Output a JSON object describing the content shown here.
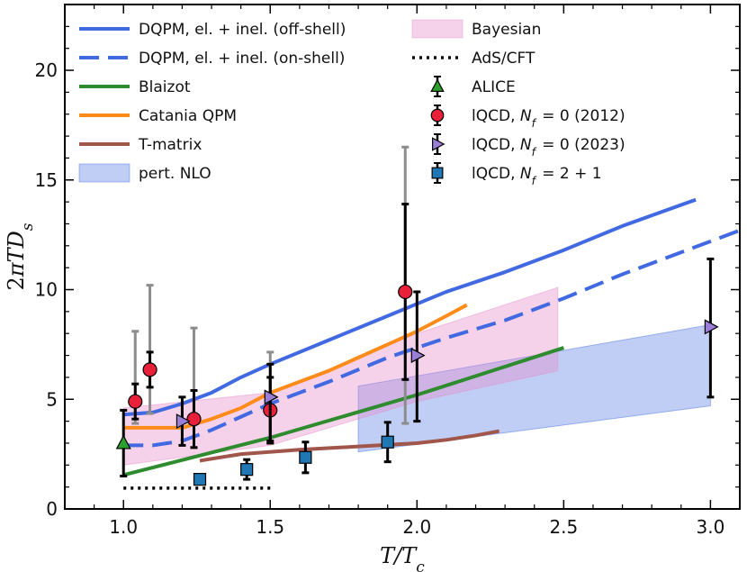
{
  "chart_data": {
    "type": "line",
    "xlabel": "T/T_c",
    "ylabel": "2πTD_s",
    "xlim": [
      0.8,
      3.1
    ],
    "ylim": [
      0,
      23
    ],
    "xticks": [
      "1.0",
      "1.5",
      "2.0",
      "2.5",
      "3.0"
    ],
    "yticks": [
      "0",
      "5",
      "10",
      "15",
      "20"
    ],
    "grid": false,
    "legend_position": "top",
    "lines": [
      {
        "name": "DQPM, el. + inel. (off-shell)",
        "color": "#4169e1",
        "dash": "solid",
        "x": [
          1.0,
          1.1,
          1.2,
          1.3,
          1.4,
          1.5,
          1.7,
          1.9,
          2.1,
          2.3,
          2.5,
          2.7,
          2.95
        ],
        "y": [
          4.3,
          4.4,
          4.8,
          5.3,
          6.0,
          6.6,
          7.7,
          8.8,
          9.9,
          10.8,
          11.8,
          12.9,
          14.1
        ]
      },
      {
        "name": "DQPM, el. + inel. (on-shell)",
        "color": "#4169e1",
        "dash": "dashed",
        "x": [
          1.0,
          1.1,
          1.2,
          1.3,
          1.4,
          1.5,
          1.7,
          1.9,
          2.1,
          2.3,
          2.5,
          2.7,
          2.9,
          3.1
        ],
        "y": [
          2.9,
          2.9,
          3.1,
          3.6,
          4.2,
          4.8,
          5.8,
          6.9,
          7.8,
          8.6,
          9.6,
          10.7,
          11.7,
          12.7
        ]
      },
      {
        "name": "Blaizot",
        "color": "#2e8b2e",
        "dash": "solid",
        "x": [
          1.0,
          1.5,
          2.0,
          2.5
        ],
        "y": [
          1.55,
          3.25,
          5.2,
          7.35
        ]
      },
      {
        "name": "Catania QPM",
        "color": "#ff8c1a",
        "dash": "solid",
        "x": [
          1.0,
          1.1,
          1.2,
          1.3,
          1.4,
          1.5,
          1.6,
          1.7,
          1.8,
          1.9,
          2.0,
          2.1,
          2.17
        ],
        "y": [
          3.7,
          3.7,
          3.7,
          4.1,
          4.6,
          5.3,
          5.8,
          6.3,
          6.9,
          7.5,
          8.1,
          8.8,
          9.3
        ]
      },
      {
        "name": "T-matrix",
        "color": "#a0564b",
        "dash": "solid",
        "x": [
          1.26,
          1.4,
          1.6,
          1.8,
          2.0,
          2.1,
          2.2,
          2.28
        ],
        "y": [
          2.2,
          2.5,
          2.7,
          2.85,
          3.0,
          3.15,
          3.35,
          3.55
        ]
      },
      {
        "name": "AdS/CFT",
        "color": "#000000",
        "dash": "dotted",
        "x": [
          1.0,
          1.5
        ],
        "y": [
          0.95,
          0.95
        ]
      }
    ],
    "bands": [
      {
        "name": "pert. NLO",
        "color": "#4169e1",
        "opacity": 0.33,
        "upper_x": [
          1.8,
          3.0
        ],
        "upper_y": [
          5.6,
          8.4
        ],
        "lower_x": [
          1.8,
          3.0
        ],
        "lower_y": [
          2.6,
          4.7
        ]
      },
      {
        "name": "Bayesian",
        "color": "#e68ac8",
        "opacity": 0.38,
        "upper_x": [
          1.0,
          1.5,
          2.0,
          2.48
        ],
        "upper_y": [
          4.6,
          5.3,
          8.0,
          10.1
        ],
        "lower_x": [
          1.0,
          1.5,
          2.0,
          2.48
        ],
        "lower_y": [
          2.0,
          2.9,
          4.9,
          6.3
        ]
      }
    ],
    "points": [
      {
        "name": "ALICE",
        "marker": "triangle-up",
        "color": "#2ca02c",
        "data": [
          {
            "x": 1.0,
            "y": 3.0,
            "err_lo": 1.5,
            "err_hi": 1.5
          }
        ]
      },
      {
        "name": "lQCD, N_f = 0 (2012)",
        "marker": "circle",
        "color": "#e8203a",
        "data": [
          {
            "x": 1.04,
            "y": 4.9,
            "err_lo": 0.8,
            "err_hi": 0.8,
            "sys_lo": 1.0,
            "sys_hi": 3.2
          },
          {
            "x": 1.09,
            "y": 6.35,
            "err_lo": 0.8,
            "err_hi": 0.8,
            "sys_lo": 2.0,
            "sys_hi": 3.85
          },
          {
            "x": 1.24,
            "y": 4.1,
            "err_lo": 1.3,
            "err_hi": 1.3,
            "sys_lo": 1.3,
            "sys_hi": 4.15
          },
          {
            "x": 1.5,
            "y": 4.5,
            "err_lo": 1.5,
            "err_hi": 1.5,
            "sys_lo": 1.5,
            "sys_hi": 2.65
          },
          {
            "x": 1.96,
            "y": 9.9,
            "err_lo": 4.0,
            "err_hi": 4.0,
            "sys_lo": 6.0,
            "sys_hi": 6.6
          }
        ]
      },
      {
        "name": "lQCD, N_f = 0 (2023)",
        "marker": "triangle-right",
        "color": "#9b7ed8",
        "data": [
          {
            "x": 1.2,
            "y": 4.0,
            "err_lo": 1.1,
            "err_hi": 1.1
          },
          {
            "x": 1.5,
            "y": 5.1,
            "err_lo": 2.0,
            "err_hi": 1.5
          },
          {
            "x": 2.0,
            "y": 7.0,
            "err_lo": 3.0,
            "err_hi": 2.9
          },
          {
            "x": 3.0,
            "y": 8.3,
            "err_lo": 3.2,
            "err_hi": 3.1
          }
        ]
      },
      {
        "name": "lQCD, N_f = 2 + 1",
        "marker": "square",
        "color": "#1f77b4",
        "data": [
          {
            "x": 1.26,
            "y": 1.35,
            "err_lo": 0.15,
            "err_hi": 0.15
          },
          {
            "x": 1.42,
            "y": 1.8,
            "err_lo": 0.45,
            "err_hi": 0.45
          },
          {
            "x": 1.62,
            "y": 2.35,
            "err_lo": 0.7,
            "err_hi": 0.7
          },
          {
            "x": 1.9,
            "y": 3.05,
            "err_lo": 0.9,
            "err_hi": 0.9
          }
        ]
      }
    ],
    "legend": {
      "col1": [
        "DQPM, el. + inel. (off-shell)",
        "DQPM, el. + inel. (on-shell)",
        "Blaizot",
        "Catania QPM",
        "T-matrix",
        "pert. NLO"
      ],
      "col2": [
        "Bayesian",
        "AdS/CFT",
        "ALICE",
        "lQCD, N_f = 0 (2012)",
        "lQCD, N_f = 0 (2023)",
        "lQCD, N_f = 2 + 1"
      ]
    }
  }
}
